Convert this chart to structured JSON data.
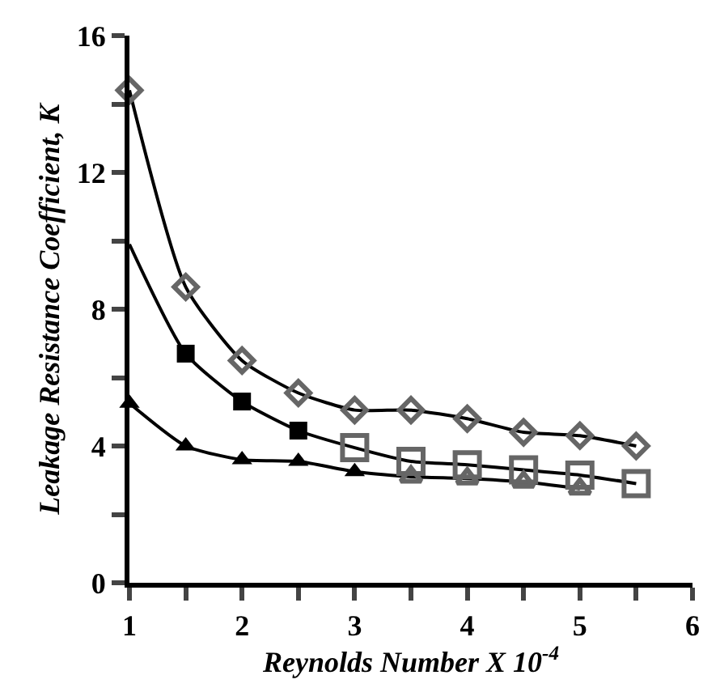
{
  "chart_data": {
    "type": "line",
    "xlabel": "Reynolds Number X 10$^{-4}$",
    "ylabel": "Leakage Resistance Coefficient, K",
    "xlim": [
      1,
      6
    ],
    "ylim": [
      0,
      16
    ],
    "xticks": [
      1,
      {
        "value": 1.5,
        "label": null
      },
      2,
      {
        "value": 2.5,
        "label": null
      },
      3,
      {
        "value": 3.5,
        "label": null
      },
      4,
      {
        "value": 4.5,
        "label": null
      },
      5,
      {
        "value": 5.5,
        "label": null
      },
      6
    ],
    "yticks": [
      0,
      {
        "value": 2,
        "label": null
      },
      4,
      {
        "value": 6,
        "label": null
      },
      8,
      {
        "value": 10,
        "label": null
      },
      12,
      {
        "value": 14,
        "label": null
      },
      16
    ],
    "grid": false,
    "series": [
      {
        "marker": "none",
        "color": "#000000",
        "x": [
          1,
          1.5,
          2,
          2.5,
          3,
          3.5,
          4,
          4.5,
          5,
          5.5
        ],
        "values": [
          14.4,
          8.65,
          6.5,
          5.55,
          5.05,
          5.05,
          4.8,
          4.4,
          4.3,
          4.0
        ]
      },
      {
        "marker": "none",
        "color": "#000000",
        "x": [
          1,
          1.5,
          2,
          2.5,
          3,
          3.5,
          4,
          4.5,
          5,
          5.5
        ],
        "values": [
          9.9,
          6.7,
          5.3,
          4.45,
          3.95,
          3.55,
          3.45,
          3.3,
          3.15,
          2.9
        ]
      },
      {
        "marker": "none",
        "color": "#000000",
        "x": [
          1,
          1.5,
          2,
          2.5,
          3,
          3.5,
          4,
          4.5,
          5
        ],
        "values": [
          5.25,
          4.0,
          3.6,
          3.55,
          3.25,
          3.1,
          3.05,
          2.95,
          2.75
        ]
      },
      {
        "type": "scatter",
        "marker": "diamond",
        "color": "#666666",
        "x": [
          1,
          1.5,
          2,
          2.5,
          3,
          3.5,
          4,
          4.5,
          5,
          5.5
        ],
        "values": [
          14.4,
          8.65,
          6.5,
          5.55,
          5.05,
          5.05,
          4.8,
          4.4,
          4.3,
          4.0
        ]
      },
      {
        "type": "scatter",
        "marker": "square",
        "color": "#000000",
        "x": [
          1.5,
          2,
          2.5
        ],
        "values": [
          6.7,
          5.3,
          4.45
        ]
      },
      {
        "type": "scatter",
        "marker": "square",
        "color": "#666666",
        "x": [
          3,
          3.5,
          4,
          4.5,
          5,
          5.5
        ],
        "values": [
          3.95,
          3.55,
          3.45,
          3.3,
          3.15,
          2.9
        ]
      },
      {
        "type": "scatter",
        "marker": "triangle",
        "color": "#000000",
        "x": [
          1,
          1.5,
          2,
          2.5,
          3
        ],
        "values": [
          5.25,
          4.0,
          3.6,
          3.55,
          3.25
        ]
      },
      {
        "type": "scatter",
        "marker": "triangle",
        "color": "#666666",
        "x": [
          3.5,
          4,
          4.5,
          5
        ],
        "values": [
          3.1,
          3.05,
          2.95,
          2.75
        ]
      }
    ]
  }
}
